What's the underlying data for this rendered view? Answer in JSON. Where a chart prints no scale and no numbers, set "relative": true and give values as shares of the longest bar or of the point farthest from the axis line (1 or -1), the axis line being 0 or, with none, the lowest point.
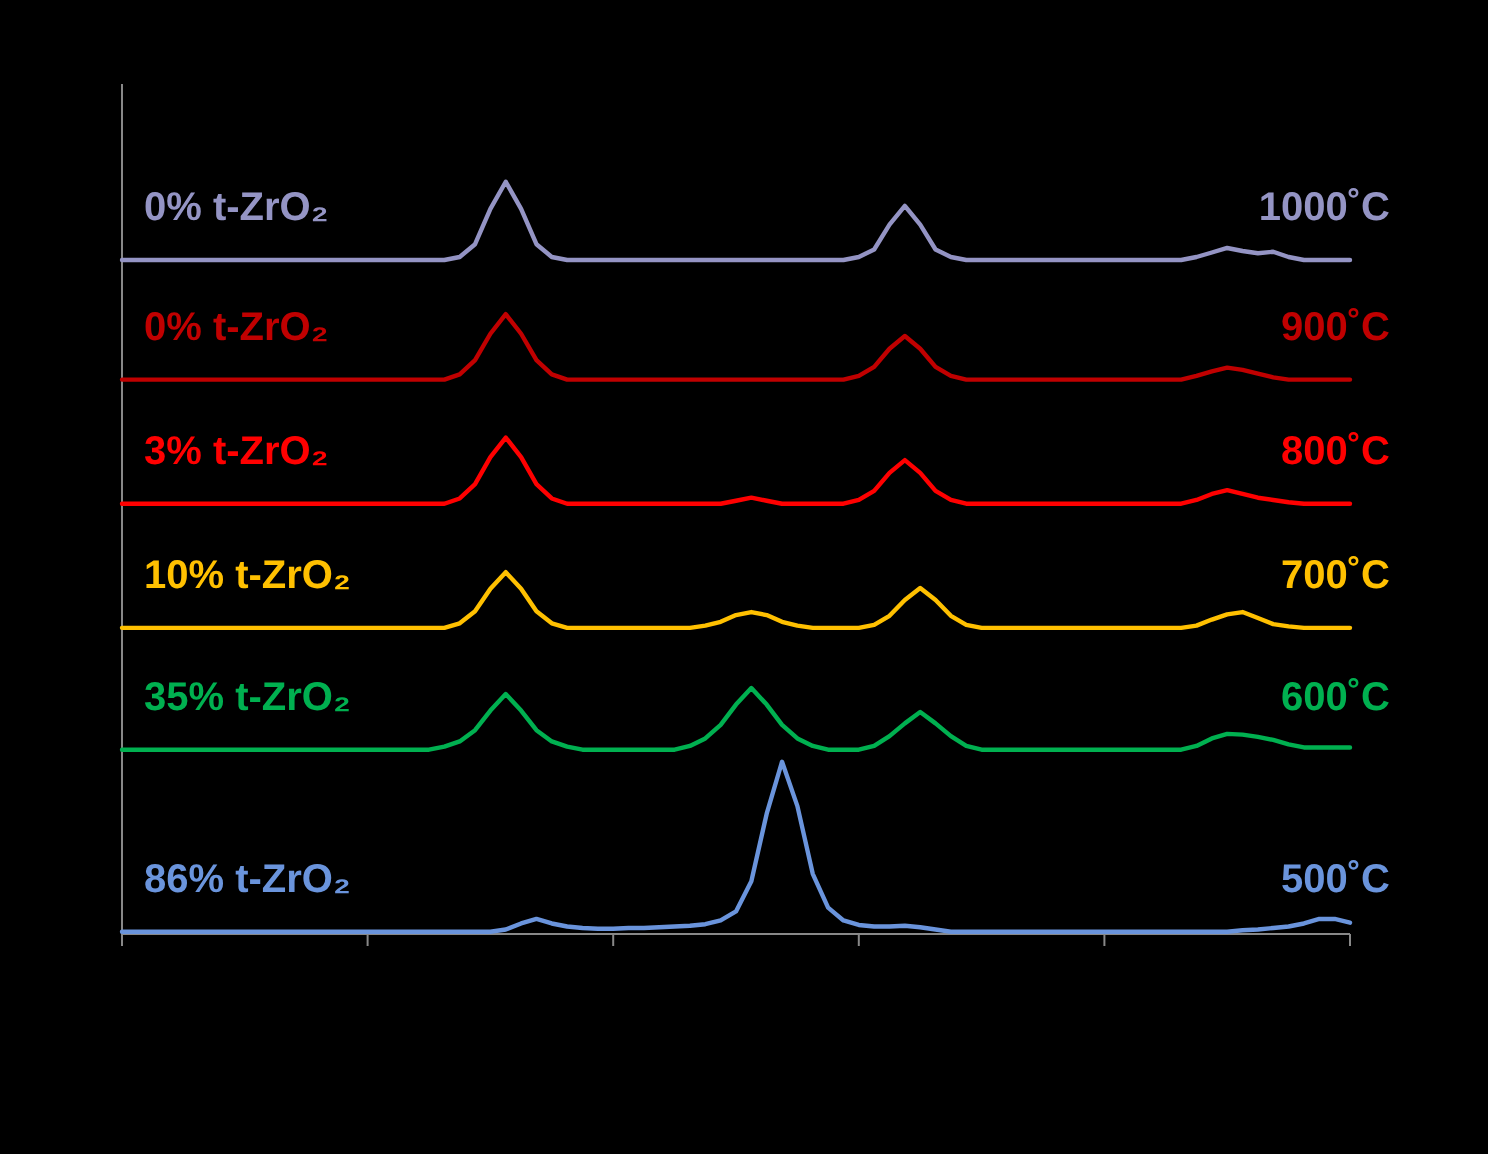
{
  "chart_data": {
    "type": "line",
    "relative": true,
    "line_style": "solid",
    "categories": [
      null,
      null,
      null,
      null,
      null,
      null,
      null,
      null,
      null,
      null,
      null,
      null,
      null,
      null,
      null,
      null,
      null,
      null,
      null,
      null,
      null,
      null,
      null,
      null,
      null,
      null,
      null,
      null,
      null,
      null,
      null,
      null,
      null,
      null,
      null,
      null,
      null,
      null,
      null,
      null,
      null,
      null,
      null,
      null,
      null,
      null,
      null,
      null,
      null,
      null,
      null,
      null,
      null,
      null,
      null,
      null,
      null,
      null,
      null,
      null,
      null,
      null,
      null,
      null,
      null,
      null,
      null,
      null,
      null,
      null,
      null,
      null,
      null,
      null,
      null,
      null,
      null,
      null,
      null,
      null,
      null
    ],
    "series": [
      {
        "name": "1000˚C",
        "color": "#9494c4",
        "values": [
          0.896,
          0.896,
          0.896,
          0.896,
          0.896,
          0.896,
          0.896,
          0.896,
          0.896,
          0.896,
          0.896,
          0.896,
          0.896,
          0.896,
          0.896,
          0.896,
          0.896,
          0.896,
          0.896,
          0.896,
          0.896,
          0.896,
          0.9,
          0.917,
          0.964,
          1,
          0.964,
          0.917,
          0.9,
          0.896,
          0.896,
          0.896,
          0.896,
          0.896,
          0.896,
          0.896,
          0.896,
          0.896,
          0.896,
          0.896,
          0.896,
          0.896,
          0.896,
          0.896,
          0.896,
          0.896,
          0.896,
          0.896,
          0.9,
          0.91,
          0.943,
          0.968,
          0.943,
          0.91,
          0.9,
          0.896,
          0.896,
          0.896,
          0.896,
          0.896,
          0.896,
          0.896,
          0.896,
          0.896,
          0.896,
          0.896,
          0.896,
          0.896,
          0.896,
          0.896,
          0.9,
          0.906,
          0.912,
          0.908,
          0.905,
          0.907,
          0.9,
          0.896,
          0.896,
          0.896,
          0.896
        ]
      },
      {
        "name": "900˚C",
        "color": "#c00000",
        "values": [
          0.737,
          0.737,
          0.737,
          0.737,
          0.737,
          0.737,
          0.737,
          0.737,
          0.737,
          0.737,
          0.737,
          0.737,
          0.737,
          0.737,
          0.737,
          0.737,
          0.737,
          0.737,
          0.737,
          0.737,
          0.737,
          0.737,
          0.744,
          0.763,
          0.798,
          0.824,
          0.798,
          0.763,
          0.744,
          0.737,
          0.737,
          0.737,
          0.737,
          0.737,
          0.737,
          0.737,
          0.737,
          0.737,
          0.737,
          0.737,
          0.737,
          0.737,
          0.737,
          0.737,
          0.737,
          0.737,
          0.737,
          0.737,
          0.742,
          0.754,
          0.778,
          0.795,
          0.778,
          0.754,
          0.742,
          0.737,
          0.737,
          0.737,
          0.737,
          0.737,
          0.737,
          0.737,
          0.737,
          0.737,
          0.737,
          0.737,
          0.737,
          0.737,
          0.737,
          0.737,
          0.742,
          0.748,
          0.753,
          0.75,
          0.745,
          0.74,
          0.737,
          0.737,
          0.737,
          0.737,
          0.737
        ]
      },
      {
        "name": "800˚C",
        "color": "#ff0000",
        "values": [
          0.572,
          0.572,
          0.572,
          0.572,
          0.572,
          0.572,
          0.572,
          0.572,
          0.572,
          0.572,
          0.572,
          0.572,
          0.572,
          0.572,
          0.572,
          0.572,
          0.572,
          0.572,
          0.572,
          0.572,
          0.572,
          0.572,
          0.579,
          0.598,
          0.634,
          0.66,
          0.634,
          0.598,
          0.579,
          0.572,
          0.572,
          0.572,
          0.572,
          0.572,
          0.572,
          0.572,
          0.572,
          0.572,
          0.572,
          0.572,
          0.576,
          0.58,
          0.576,
          0.572,
          0.572,
          0.572,
          0.572,
          0.572,
          0.577,
          0.589,
          0.613,
          0.63,
          0.613,
          0.589,
          0.577,
          0.572,
          0.572,
          0.572,
          0.572,
          0.572,
          0.572,
          0.572,
          0.572,
          0.572,
          0.572,
          0.572,
          0.572,
          0.572,
          0.572,
          0.572,
          0.577,
          0.585,
          0.59,
          0.585,
          0.58,
          0.577,
          0.574,
          0.572,
          0.572,
          0.572,
          0.572
        ]
      },
      {
        "name": "700˚C",
        "color": "#ffc000",
        "values": [
          0.407,
          0.407,
          0.407,
          0.407,
          0.407,
          0.407,
          0.407,
          0.407,
          0.407,
          0.407,
          0.407,
          0.407,
          0.407,
          0.407,
          0.407,
          0.407,
          0.407,
          0.407,
          0.407,
          0.407,
          0.407,
          0.407,
          0.413,
          0.429,
          0.459,
          0.481,
          0.459,
          0.429,
          0.413,
          0.407,
          0.407,
          0.407,
          0.407,
          0.407,
          0.407,
          0.407,
          0.407,
          0.407,
          0.41,
          0.415,
          0.424,
          0.428,
          0.424,
          0.415,
          0.41,
          0.407,
          0.407,
          0.407,
          0.407,
          0.411,
          0.423,
          0.444,
          0.46,
          0.444,
          0.423,
          0.411,
          0.407,
          0.407,
          0.407,
          0.407,
          0.407,
          0.407,
          0.407,
          0.407,
          0.407,
          0.407,
          0.407,
          0.407,
          0.407,
          0.407,
          0.41,
          0.418,
          0.425,
          0.428,
          0.42,
          0.412,
          0.409,
          0.407,
          0.407,
          0.407,
          0.407
        ]
      },
      {
        "name": "600˚C",
        "color": "#00b050",
        "values": [
          0.245,
          0.245,
          0.245,
          0.245,
          0.245,
          0.245,
          0.245,
          0.245,
          0.245,
          0.245,
          0.245,
          0.245,
          0.245,
          0.245,
          0.245,
          0.245,
          0.245,
          0.245,
          0.245,
          0.245,
          0.245,
          0.249,
          0.256,
          0.271,
          0.297,
          0.319,
          0.297,
          0.271,
          0.256,
          0.249,
          0.245,
          0.245,
          0.245,
          0.245,
          0.245,
          0.245,
          0.245,
          0.25,
          0.26,
          0.278,
          0.305,
          0.327,
          0.305,
          0.278,
          0.26,
          0.25,
          0.245,
          0.245,
          0.245,
          0.25,
          0.263,
          0.28,
          0.295,
          0.28,
          0.263,
          0.25,
          0.245,
          0.245,
          0.245,
          0.245,
          0.245,
          0.245,
          0.245,
          0.245,
          0.245,
          0.245,
          0.245,
          0.245,
          0.245,
          0.245,
          0.25,
          0.26,
          0.266,
          0.265,
          0.262,
          0.258,
          0.252,
          0.248,
          0.248,
          0.248,
          0.248
        ]
      },
      {
        "name": "500˚C",
        "color": "#6a94dc",
        "values": [
          0.003,
          0.003,
          0.003,
          0.003,
          0.003,
          0.003,
          0.003,
          0.003,
          0.003,
          0.003,
          0.003,
          0.003,
          0.003,
          0.003,
          0.003,
          0.003,
          0.003,
          0.003,
          0.003,
          0.003,
          0.003,
          0.003,
          0.003,
          0.003,
          0.003,
          0.006,
          0.014,
          0.02,
          0.014,
          0.01,
          0.008,
          0.007,
          0.007,
          0.008,
          0.008,
          0.009,
          0.01,
          0.011,
          0.013,
          0.018,
          0.03,
          0.07,
          0.16,
          0.229,
          0.17,
          0.08,
          0.035,
          0.018,
          0.012,
          0.01,
          0.01,
          0.011,
          0.009,
          0.006,
          0.003,
          0.003,
          0.003,
          0.003,
          0.003,
          0.003,
          0.003,
          0.003,
          0.003,
          0.003,
          0.003,
          0.003,
          0.003,
          0.003,
          0.003,
          0.003,
          0.003,
          0.003,
          0.003,
          0.005,
          0.006,
          0.008,
          0.01,
          0.014,
          0.02,
          0.02,
          0.015
        ]
      }
    ],
    "annotations": [
      "0% t-ZrO₂",
      "0% t-ZrO₂",
      "3% t-ZrO₂",
      "10% t-ZrO₂",
      "35% t-ZrO₂",
      "86% t-ZrO₂"
    ]
  }
}
